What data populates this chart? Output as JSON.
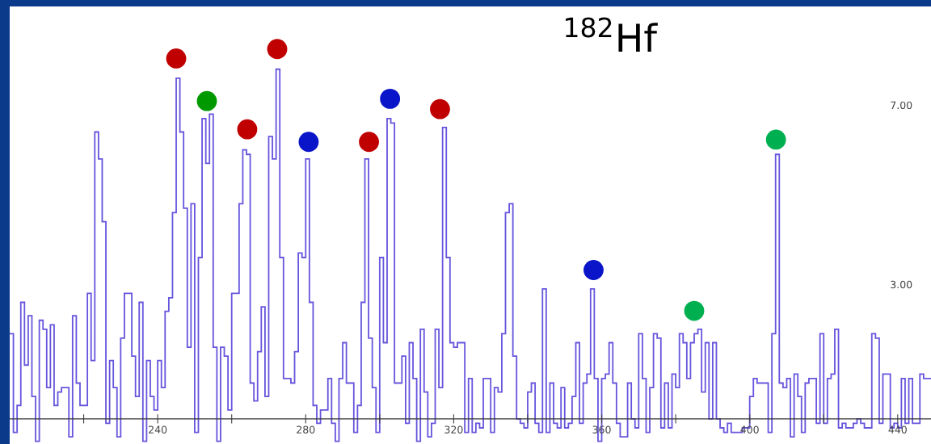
{
  "chart_data": {
    "type": "histogram",
    "annotations": [
      "$^{182}$Hf"
    ],
    "bins": [
      200,
      201,
      202,
      203,
      204,
      205,
      206,
      207,
      208,
      209,
      210,
      211,
      212,
      213,
      214,
      215,
      216,
      217,
      218,
      219,
      220,
      221,
      222,
      223,
      224,
      225,
      226,
      227,
      228,
      229,
      230,
      231,
      232,
      233,
      234,
      235,
      236,
      237,
      238,
      239,
      240,
      241,
      242,
      243,
      244,
      245,
      246,
      247,
      248,
      249,
      250,
      251,
      252,
      253,
      254,
      255,
      256,
      257,
      258,
      259,
      260,
      261,
      262,
      263,
      264,
      265,
      266,
      267,
      268,
      269,
      270,
      271,
      272,
      273,
      274,
      275,
      276,
      277,
      278,
      279,
      280,
      281,
      282,
      283,
      284,
      285,
      286,
      287,
      288,
      289,
      290,
      291,
      292,
      293,
      294,
      295,
      296,
      297,
      298,
      299,
      300,
      301,
      302,
      303,
      304,
      305,
      306,
      307,
      308,
      309,
      310,
      311,
      312,
      313,
      314,
      315,
      316,
      317,
      318,
      319,
      320,
      321,
      322,
      323,
      324,
      325,
      326,
      327,
      328,
      329,
      330,
      331,
      332,
      333,
      334,
      335,
      336,
      337,
      338,
      339,
      340,
      341,
      342,
      343,
      344,
      345,
      346,
      347,
      348,
      349,
      350,
      351,
      352,
      353,
      354,
      355,
      356,
      357,
      358,
      359,
      360,
      361,
      362,
      363,
      364,
      365,
      366,
      367,
      368,
      369,
      370,
      371,
      372,
      373,
      374,
      375,
      376,
      377,
      378,
      379,
      380,
      381,
      382,
      383,
      384,
      385,
      386,
      387,
      388,
      389,
      390,
      391,
      392,
      393,
      394,
      395,
      396,
      397,
      398,
      399,
      400,
      401,
      402,
      403,
      404,
      405,
      406,
      407,
      408,
      409,
      410,
      411,
      412,
      413,
      414,
      415,
      416,
      417,
      418,
      419,
      420,
      421,
      422,
      423,
      424,
      425,
      426,
      427,
      428,
      429,
      430,
      431,
      432,
      433,
      434,
      435,
      436,
      437,
      438,
      439,
      440,
      441,
      442,
      443,
      444,
      445,
      446,
      447,
      448,
      449
    ],
    "values": [
      1.9,
      -0.3,
      0.3,
      2.6,
      1.2,
      2.3,
      0.5,
      -0.5,
      2.2,
      2.0,
      0.7,
      2.1,
      0.3,
      0.6,
      0.7,
      0.7,
      -0.4,
      2.3,
      0.8,
      0.3,
      0.3,
      2.8,
      1.3,
      6.4,
      5.8,
      4.4,
      -0.1,
      1.3,
      0.7,
      -0.4,
      1.8,
      2.8,
      2.8,
      1.4,
      0.5,
      2.6,
      -0.5,
      1.3,
      0.5,
      0.2,
      1.3,
      0.7,
      2.4,
      2.7,
      4.6,
      7.6,
      6.4,
      4.7,
      1.6,
      4.8,
      -0.3,
      3.6,
      6.7,
      5.7,
      6.8,
      1.6,
      -0.5,
      1.6,
      1.4,
      0.2,
      2.8,
      2.8,
      4.8,
      6.0,
      5.9,
      0.8,
      0.4,
      1.5,
      2.5,
      0.5,
      6.3,
      5.8,
      7.8,
      3.6,
      0.9,
      0.9,
      0.8,
      1.5,
      3.7,
      3.6,
      5.8,
      2.6,
      0.3,
      -0.1,
      0.2,
      0.2,
      0.9,
      -0.1,
      -0.5,
      0.9,
      1.7,
      0.8,
      0.8,
      -0.3,
      0.3,
      2.6,
      5.8,
      1.8,
      0.7,
      -0.3,
      3.6,
      1.7,
      6.7,
      6.6,
      0.8,
      0.8,
      1.4,
      -0.1,
      1.7,
      0.9,
      -0.5,
      2.0,
      0.6,
      -0.4,
      -0.1,
      2.0,
      0.7,
      6.5,
      3.6,
      1.7,
      1.6,
      1.7,
      1.7,
      -0.3,
      0.9,
      -0.3,
      -0.1,
      -0.2,
      0.9,
      0.9,
      -0.3,
      0.7,
      0.6,
      1.9,
      4.6,
      4.8,
      1.4,
      0.0,
      -0.1,
      -0.2,
      0.6,
      0.8,
      -0.1,
      -0.3,
      2.9,
      -0.3,
      0.8,
      -0.1,
      -0.2,
      0.7,
      -0.2,
      -0.1,
      0.5,
      1.7,
      -0.1,
      0.8,
      1.0,
      2.9,
      0.9,
      -0.5,
      0.9,
      1.0,
      1.7,
      0.8,
      -0.1,
      -0.4,
      -0.4,
      0.8,
      0.0,
      -0.2,
      1.9,
      0.9,
      -0.3,
      0.7,
      1.9,
      1.8,
      -0.2,
      0.8,
      -0.2,
      1.0,
      0.7,
      1.9,
      1.7,
      0.9,
      1.7,
      1.9,
      2.0,
      0.6,
      1.7,
      0.0,
      1.7,
      0.0,
      -0.2,
      -0.3,
      -0.1,
      -0.3,
      -0.3,
      -0.3,
      -0.2,
      -0.2,
      0.5,
      0.9,
      0.8,
      0.8,
      0.8,
      -0.3,
      1.9,
      5.9,
      0.8,
      0.7,
      0.9,
      -0.4,
      1.0,
      0.5,
      -0.3,
      0.8,
      0.9,
      0.9,
      -0.1,
      1.9,
      -0.1,
      0.9,
      1.0,
      2.0,
      -0.2,
      -0.1,
      -0.2,
      -0.2,
      -0.1,
      0.0,
      -0.1,
      -0.2,
      -0.2,
      1.9,
      1.8,
      -0.1,
      1.0,
      1.0,
      -0.2,
      -0.1,
      -0.2,
      0.9,
      -0.1,
      0.9,
      -0.1,
      -0.1,
      1.0,
      0.9,
      0.9
    ],
    "color": "#6655dd",
    "series": [
      {
        "type": "scatter",
        "color": "#c00000",
        "x": [
          245.0,
          264.2,
          272.3,
          297.1,
          316.3
        ],
        "values": [
          8.04,
          6.46,
          8.25,
          6.18,
          6.91
        ]
      },
      {
        "type": "scatter",
        "color": "#0a14c8",
        "x": [
          280.8,
          302.8,
          357.8
        ],
        "values": [
          6.18,
          7.14,
          3.32
        ]
      },
      {
        "type": "scatter",
        "colors": [
          "#009900",
          "#00b050",
          "#00b050"
        ],
        "x": [
          253.3,
          385.0,
          407.1
        ],
        "values": [
          7.09,
          2.41,
          6.23
        ]
      }
    ],
    "marker": "circle",
    "xlim": [
      200,
      449
    ],
    "ylim": [
      -0.56,
      9.2
    ],
    "xticks": [
      {
        "value": 220,
        "label": null
      },
      240,
      {
        "value": 260,
        "label": null
      },
      280,
      {
        "value": 300,
        "label": null
      },
      320,
      {
        "value": 340,
        "label": null
      },
      360,
      {
        "value": 380,
        "label": null
      },
      400,
      {
        "value": 420,
        "label": null
      },
      440
    ],
    "yticks": [
      {
        "value": 3,
        "label": "3.00"
      },
      {
        "value": 7,
        "label": "7.00"
      }
    ],
    "grid": false,
    "legend": false
  }
}
